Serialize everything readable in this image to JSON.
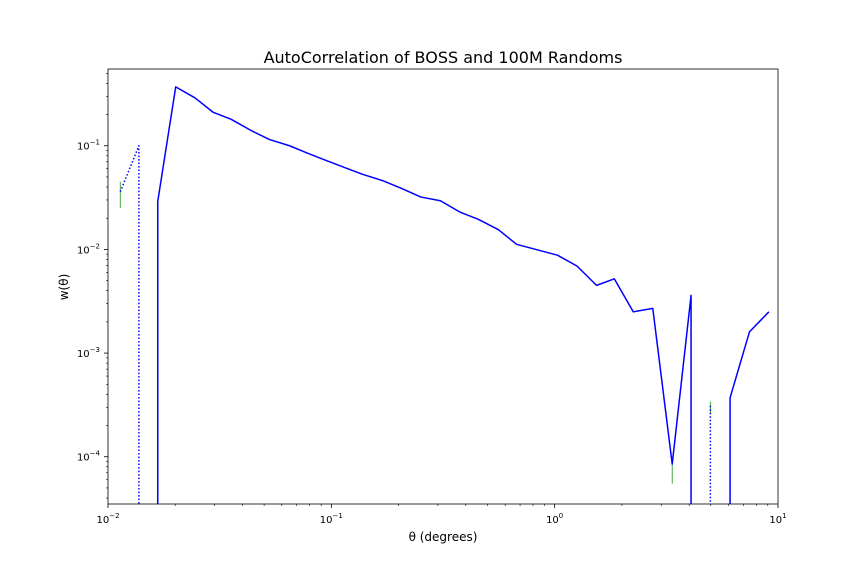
{
  "chart_data": {
    "type": "line",
    "title": "AutoCorrelation of BOSS and 100M Randoms",
    "xlabel": "θ (degrees)",
    "ylabel": "w(θ)",
    "x_scale": "log",
    "y_scale": "log",
    "xlim": [
      0.01,
      10
    ],
    "ylim": [
      3.5e-05,
      0.55
    ],
    "grid": false,
    "legend": "none",
    "x_ticks": [
      {
        "value": 0.01,
        "base": "10",
        "exp": "−2"
      },
      {
        "value": 0.1,
        "base": "10",
        "exp": "−1"
      },
      {
        "value": 1,
        "base": "10",
        "exp": "0"
      },
      {
        "value": 10,
        "base": "10",
        "exp": "1"
      }
    ],
    "y_ticks": [
      {
        "value": 0.0001,
        "base": "10",
        "exp": "−4"
      },
      {
        "value": 0.001,
        "base": "10",
        "exp": "−3"
      },
      {
        "value": 0.01,
        "base": "10",
        "exp": "−2"
      },
      {
        "value": 0.1,
        "base": "10",
        "exp": "−1"
      }
    ],
    "colors": {
      "series": "#0000ff",
      "error": "#2ca02c"
    },
    "series": [
      {
        "style": "solid",
        "points": [
          {
            "x": 0.0167,
            "y": 1e-07
          },
          {
            "x": 0.0167,
            "y": 0.029
          },
          {
            "x": 0.0201,
            "y": 0.37
          },
          {
            "x": 0.0245,
            "y": 0.29
          },
          {
            "x": 0.0296,
            "y": 0.21
          },
          {
            "x": 0.0356,
            "y": 0.18
          },
          {
            "x": 0.0438,
            "y": 0.14
          },
          {
            "x": 0.0527,
            "y": 0.115
          },
          {
            "x": 0.065,
            "y": 0.1
          },
          {
            "x": 0.078,
            "y": 0.085
          },
          {
            "x": 0.095,
            "y": 0.072
          },
          {
            "x": 0.114,
            "y": 0.062
          },
          {
            "x": 0.138,
            "y": 0.053
          },
          {
            "x": 0.17,
            "y": 0.046
          },
          {
            "x": 0.205,
            "y": 0.039
          },
          {
            "x": 0.252,
            "y": 0.032
          },
          {
            "x": 0.308,
            "y": 0.0295
          },
          {
            "x": 0.375,
            "y": 0.023
          },
          {
            "x": 0.455,
            "y": 0.0195
          },
          {
            "x": 0.56,
            "y": 0.0155
          },
          {
            "x": 0.675,
            "y": 0.0112
          },
          {
            "x": 1.03,
            "y": 0.0088
          },
          {
            "x": 1.26,
            "y": 0.0069
          },
          {
            "x": 1.54,
            "y": 0.0045
          },
          {
            "x": 1.85,
            "y": 0.0052
          },
          {
            "x": 2.25,
            "y": 0.0025
          },
          {
            "x": 2.75,
            "y": 0.0027
          },
          {
            "x": 3.36,
            "y": 8.5e-05
          },
          {
            "x": 4.08,
            "y": 0.0036
          },
          {
            "x": 4.08,
            "y": 1e-07
          }
        ]
      },
      {
        "style": "solid",
        "points": [
          {
            "x": 6.1,
            "y": 1e-07
          },
          {
            "x": 6.1,
            "y": 0.00037
          },
          {
            "x": 7.45,
            "y": 0.0016
          },
          {
            "x": 9.1,
            "y": 0.0025
          }
        ]
      },
      {
        "style": "dotted",
        "points": [
          {
            "x": 0.01135,
            "y": 0.036
          },
          {
            "x": 0.01375,
            "y": 0.1
          },
          {
            "x": 0.01375,
            "y": 1e-07
          }
        ]
      },
      {
        "style": "dotted",
        "points": [
          {
            "x": 4.98,
            "y": 0.00031
          },
          {
            "x": 4.98,
            "y": 1e-07
          }
        ]
      }
    ],
    "errorbars": [
      {
        "x": 0.01135,
        "ylow": 0.025,
        "yhigh": 0.045
      },
      {
        "x": 3.36,
        "ylow": 5.5e-05,
        "yhigh": 0.0001
      },
      {
        "x": 4.98,
        "ylow": 0.00026,
        "yhigh": 0.00034
      }
    ]
  }
}
